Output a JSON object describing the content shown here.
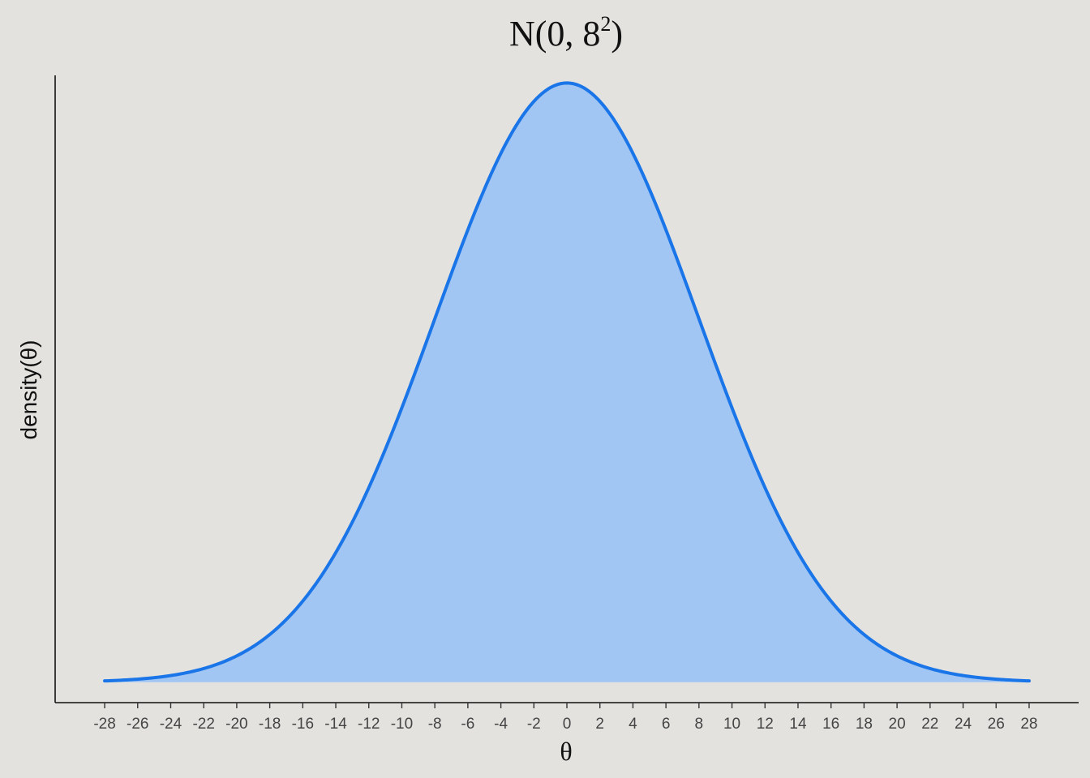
{
  "chart_data": {
    "type": "area",
    "title": {
      "main": "N(0, 8",
      "superscript": "2",
      "close": ")"
    },
    "xlabel": "θ",
    "ylabel": "density(θ)",
    "distribution": {
      "family": "normal",
      "mean": 0,
      "sd": 8
    },
    "x_range": [
      -28,
      28
    ],
    "xlim": [
      -31,
      31
    ],
    "ylim": [
      -0.0017,
      0.0505
    ],
    "x_ticks": [
      -28,
      -26,
      -24,
      -22,
      -20,
      -18,
      -16,
      -14,
      -12,
      -10,
      -8,
      -6,
      -4,
      -2,
      0,
      2,
      4,
      6,
      8,
      10,
      12,
      14,
      16,
      18,
      20,
      22,
      24,
      26,
      28
    ],
    "x_tick_labels": [
      "-28",
      "-26",
      "-24",
      "-22",
      "-20",
      "-18",
      "-16",
      "-14",
      "-12",
      "-10",
      "-8",
      "-6",
      "-4",
      "-2",
      "0",
      "2",
      "4",
      "6",
      "8",
      "10",
      "12",
      "14",
      "16",
      "18",
      "20",
      "22",
      "24",
      "26",
      "28"
    ],
    "y_ticks_shown": false,
    "grid": false,
    "legend": "none",
    "colors": {
      "background": "#e3e2df",
      "fill": "#a1c6f3",
      "line": "#1a75e8",
      "axis": "#111111"
    }
  }
}
